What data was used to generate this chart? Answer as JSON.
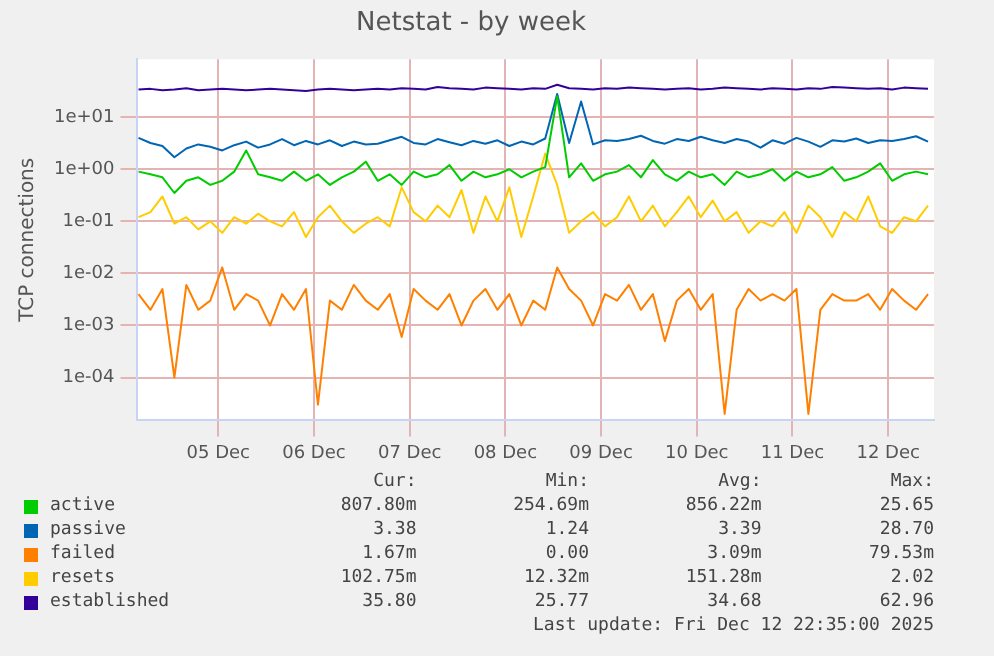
{
  "chart_data": {
    "type": "line",
    "title": "Netstat - by week",
    "ylabel": "TCP connections",
    "log": "y",
    "grid": true,
    "legend": "bottom",
    "marker": "none",
    "line_style": "solid",
    "xlim": [
      "2025-12-04T15:30",
      "2025-12-12T23:30"
    ],
    "xticks": [
      {
        "value": "2025-12-05T12:00",
        "label": "05 Dec"
      },
      {
        "value": "2025-12-06T12:00",
        "label": "06 Dec"
      },
      {
        "value": "2025-12-07T12:00",
        "label": "07 Dec"
      },
      {
        "value": "2025-12-08T12:00",
        "label": "08 Dec"
      },
      {
        "value": "2025-12-09T12:00",
        "label": "09 Dec"
      },
      {
        "value": "2025-12-10T12:00",
        "label": "10 Dec"
      },
      {
        "value": "2025-12-11T12:00",
        "label": "11 Dec"
      },
      {
        "value": "2025-12-12T12:00",
        "label": "12 Dec"
      }
    ],
    "ylim": [
      1.5e-05,
      130
    ],
    "yticks": [
      {
        "value": 0.0001,
        "label": "1e-04"
      },
      {
        "value": 0.001,
        "label": "1e-03"
      },
      {
        "value": 0.01,
        "label": "1e-02"
      },
      {
        "value": 0.1,
        "label": "1e-01"
      },
      {
        "value": 1,
        "label": "1e+00"
      },
      {
        "value": 10,
        "label": "1e+01"
      }
    ],
    "x": [
      "2025-12-04T16:00",
      "2025-12-04T19:00",
      "2025-12-04T22:00",
      "2025-12-05T01:00",
      "2025-12-05T04:00",
      "2025-12-05T07:00",
      "2025-12-05T10:00",
      "2025-12-05T13:00",
      "2025-12-05T16:00",
      "2025-12-05T19:00",
      "2025-12-05T22:00",
      "2025-12-06T01:00",
      "2025-12-06T04:00",
      "2025-12-06T07:00",
      "2025-12-06T10:00",
      "2025-12-06T13:00",
      "2025-12-06T16:00",
      "2025-12-06T19:00",
      "2025-12-06T22:00",
      "2025-12-07T01:00",
      "2025-12-07T04:00",
      "2025-12-07T07:00",
      "2025-12-07T10:00",
      "2025-12-07T13:00",
      "2025-12-07T16:00",
      "2025-12-07T19:00",
      "2025-12-07T22:00",
      "2025-12-08T01:00",
      "2025-12-08T04:00",
      "2025-12-08T07:00",
      "2025-12-08T10:00",
      "2025-12-08T13:00",
      "2025-12-08T16:00",
      "2025-12-08T19:00",
      "2025-12-08T22:00",
      "2025-12-09T01:00",
      "2025-12-09T04:00",
      "2025-12-09T07:00",
      "2025-12-09T10:00",
      "2025-12-09T13:00",
      "2025-12-09T16:00",
      "2025-12-09T19:00",
      "2025-12-09T22:00",
      "2025-12-10T01:00",
      "2025-12-10T04:00",
      "2025-12-10T07:00",
      "2025-12-10T10:00",
      "2025-12-10T13:00",
      "2025-12-10T16:00",
      "2025-12-10T19:00",
      "2025-12-10T22:00",
      "2025-12-11T01:00",
      "2025-12-11T04:00",
      "2025-12-11T07:00",
      "2025-12-11T10:00",
      "2025-12-11T13:00",
      "2025-12-11T16:00",
      "2025-12-11T19:00",
      "2025-12-11T22:00",
      "2025-12-12T01:00",
      "2025-12-12T04:00",
      "2025-12-12T07:00",
      "2025-12-12T10:00",
      "2025-12-12T13:00",
      "2025-12-12T16:00",
      "2025-12-12T19:00",
      "2025-12-12T22:00"
    ],
    "series": [
      {
        "name": "active",
        "color": "#00cc00",
        "values": [
          0.9,
          0.8,
          0.7,
          0.35,
          0.6,
          0.7,
          0.5,
          0.6,
          0.9,
          2.3,
          0.8,
          0.7,
          0.6,
          0.9,
          0.6,
          0.8,
          0.5,
          0.7,
          0.9,
          1.4,
          0.6,
          0.8,
          0.5,
          0.9,
          0.7,
          0.8,
          1.2,
          0.6,
          0.9,
          0.7,
          0.8,
          1.0,
          0.7,
          0.9,
          1.1,
          25,
          0.7,
          1.3,
          0.6,
          0.8,
          0.9,
          1.2,
          0.7,
          1.5,
          0.8,
          0.6,
          0.9,
          0.7,
          0.8,
          0.5,
          0.9,
          0.7,
          0.8,
          1.0,
          0.6,
          0.9,
          0.7,
          0.8,
          1.1,
          0.6,
          0.7,
          0.9,
          1.3,
          0.6,
          0.8,
          0.9,
          0.8
        ]
      },
      {
        "name": "passive",
        "color": "#0066b3",
        "values": [
          4.0,
          3.2,
          2.8,
          1.7,
          2.5,
          3.0,
          2.7,
          2.3,
          2.9,
          3.4,
          2.6,
          3.0,
          3.8,
          2.9,
          3.5,
          3.0,
          3.6,
          2.8,
          3.4,
          3.0,
          3.1,
          3.6,
          4.2,
          3.2,
          3.0,
          3.8,
          3.3,
          2.9,
          3.5,
          3.1,
          3.6,
          2.8,
          3.4,
          3.0,
          3.9,
          28,
          3.2,
          20,
          3.0,
          3.6,
          3.5,
          3.8,
          4.4,
          3.5,
          3.1,
          3.8,
          3.5,
          4.2,
          3.6,
          3.2,
          3.8,
          3.4,
          2.6,
          3.6,
          3.1,
          4.0,
          3.4,
          2.7,
          3.6,
          3.4,
          3.9,
          3.2,
          3.6,
          3.5,
          3.8,
          4.3,
          3.4
        ]
      },
      {
        "name": "failed",
        "color": "#ff8000",
        "values": [
          0.004,
          0.002,
          0.005,
          0.0001,
          0.006,
          0.002,
          0.003,
          0.013,
          0.002,
          0.004,
          0.003,
          0.001,
          0.004,
          0.002,
          0.005,
          3e-05,
          0.003,
          0.002,
          0.006,
          0.003,
          0.002,
          0.004,
          0.0006,
          0.005,
          0.003,
          0.002,
          0.004,
          0.001,
          0.003,
          0.005,
          0.002,
          0.004,
          0.001,
          0.003,
          0.002,
          0.013,
          0.005,
          0.003,
          0.001,
          0.004,
          0.003,
          0.006,
          0.002,
          0.004,
          0.0005,
          0.003,
          0.005,
          0.002,
          0.004,
          2e-05,
          0.002,
          0.005,
          0.003,
          0.004,
          0.003,
          0.005,
          2e-05,
          0.002,
          0.004,
          0.003,
          0.003,
          0.004,
          0.002,
          0.005,
          0.003,
          0.002,
          0.004
        ]
      },
      {
        "name": "resets",
        "color": "#ffcc00",
        "values": [
          0.12,
          0.15,
          0.3,
          0.09,
          0.12,
          0.07,
          0.1,
          0.06,
          0.12,
          0.09,
          0.14,
          0.1,
          0.08,
          0.15,
          0.05,
          0.12,
          0.2,
          0.1,
          0.06,
          0.09,
          0.12,
          0.08,
          0.45,
          0.15,
          0.1,
          0.2,
          0.12,
          0.4,
          0.06,
          0.3,
          0.1,
          0.45,
          0.05,
          0.3,
          2.0,
          0.5,
          0.06,
          0.1,
          0.15,
          0.08,
          0.12,
          0.3,
          0.1,
          0.2,
          0.08,
          0.15,
          0.3,
          0.12,
          0.25,
          0.1,
          0.15,
          0.06,
          0.1,
          0.08,
          0.15,
          0.06,
          0.2,
          0.12,
          0.05,
          0.15,
          0.1,
          0.3,
          0.08,
          0.06,
          0.12,
          0.1,
          0.2
        ]
      },
      {
        "name": "established",
        "color": "#330099",
        "values": [
          34,
          35,
          33,
          34,
          36,
          33,
          34,
          35,
          34,
          33,
          34,
          35,
          34,
          33,
          32,
          34,
          35,
          34,
          33,
          34,
          35,
          34,
          36,
          35,
          34,
          38,
          36,
          35,
          34,
          37,
          36,
          35,
          34,
          36,
          35,
          42,
          36,
          35,
          34,
          36,
          35,
          37,
          36,
          35,
          34,
          35,
          36,
          34,
          35,
          37,
          36,
          35,
          34,
          36,
          35,
          34,
          36,
          35,
          38,
          37,
          36,
          35,
          36,
          34,
          37,
          36,
          35
        ]
      }
    ],
    "annotations": [
      "Cur:",
      "Min:",
      "Avg:",
      "Max:",
      "807.80m",
      "254.69m",
      "856.22m",
      "25.65",
      "3.38",
      "1.24",
      "3.39",
      "28.70",
      "1.67m",
      "0.00",
      "3.09m",
      "79.53m",
      "102.75m",
      "12.32m",
      "151.28m",
      "2.02",
      "35.80",
      "25.77",
      "34.68",
      "62.96",
      "Last update: Fri Dec 12 22:35:00 2025"
    ]
  }
}
